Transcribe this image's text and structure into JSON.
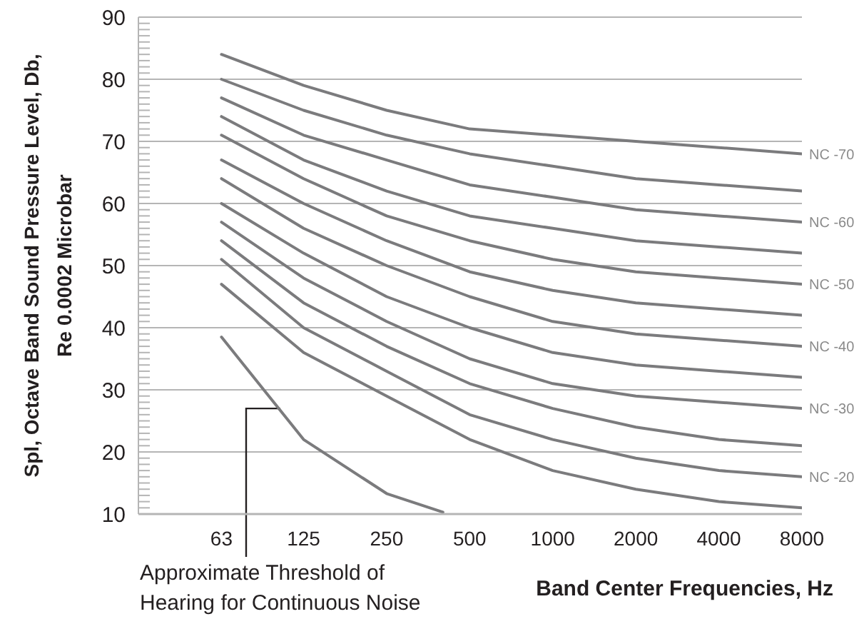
{
  "chart_data": {
    "type": "line",
    "xlabel": "Band Center Frequencies, Hz",
    "ylabel": "Spl, Octave Band Sound Pressure Level, Db, Re 0.0002 Microbar",
    "x": [
      63,
      125,
      250,
      500,
      1000,
      2000,
      4000,
      8000
    ],
    "log": "x",
    "xlim": [
      31.5,
      8000
    ],
    "xticks": [
      63,
      125,
      250,
      500,
      1000,
      2000,
      4000,
      8000
    ],
    "ylim": [
      10,
      90
    ],
    "yticks": [
      10,
      {
        "value": 11,
        "label": null
      },
      {
        "value": 12,
        "label": null
      },
      {
        "value": 13,
        "label": null
      },
      {
        "value": 14,
        "label": null
      },
      {
        "value": 15,
        "label": null
      },
      {
        "value": 16,
        "label": null
      },
      {
        "value": 17,
        "label": null
      },
      {
        "value": 18,
        "label": null
      },
      {
        "value": 19,
        "label": null
      },
      20,
      {
        "value": 21,
        "label": null
      },
      {
        "value": 22,
        "label": null
      },
      {
        "value": 23,
        "label": null
      },
      {
        "value": 24,
        "label": null
      },
      {
        "value": 25,
        "label": null
      },
      {
        "value": 26,
        "label": null
      },
      {
        "value": 27,
        "label": null
      },
      {
        "value": 28,
        "label": null
      },
      {
        "value": 29,
        "label": null
      },
      30,
      {
        "value": 31,
        "label": null
      },
      {
        "value": 32,
        "label": null
      },
      {
        "value": 33,
        "label": null
      },
      {
        "value": 34,
        "label": null
      },
      {
        "value": 35,
        "label": null
      },
      {
        "value": 36,
        "label": null
      },
      {
        "value": 37,
        "label": null
      },
      {
        "value": 38,
        "label": null
      },
      {
        "value": 39,
        "label": null
      },
      40,
      {
        "value": 41,
        "label": null
      },
      {
        "value": 42,
        "label": null
      },
      {
        "value": 43,
        "label": null
      },
      {
        "value": 44,
        "label": null
      },
      {
        "value": 45,
        "label": null
      },
      {
        "value": 46,
        "label": null
      },
      {
        "value": 47,
        "label": null
      },
      {
        "value": 48,
        "label": null
      },
      {
        "value": 49,
        "label": null
      },
      50,
      {
        "value": 51,
        "label": null
      },
      {
        "value": 52,
        "label": null
      },
      {
        "value": 53,
        "label": null
      },
      {
        "value": 54,
        "label": null
      },
      {
        "value": 55,
        "label": null
      },
      {
        "value": 56,
        "label": null
      },
      {
        "value": 57,
        "label": null
      },
      {
        "value": 58,
        "label": null
      },
      {
        "value": 59,
        "label": null
      },
      60,
      {
        "value": 61,
        "label": null
      },
      {
        "value": 62,
        "label": null
      },
      {
        "value": 63,
        "label": null
      },
      {
        "value": 64,
        "label": null
      },
      {
        "value": 65,
        "label": null
      },
      {
        "value": 66,
        "label": null
      },
      {
        "value": 67,
        "label": null
      },
      {
        "value": 68,
        "label": null
      },
      {
        "value": 69,
        "label": null
      },
      70,
      {
        "value": 71,
        "label": null
      },
      {
        "value": 72,
        "label": null
      },
      {
        "value": 73,
        "label": null
      },
      {
        "value": 74,
        "label": null
      },
      {
        "value": 75,
        "label": null
      },
      {
        "value": 76,
        "label": null
      },
      {
        "value": 77,
        "label": null
      },
      {
        "value": 78,
        "label": null
      },
      {
        "value": 79,
        "label": null
      },
      80,
      {
        "value": 81,
        "label": null
      },
      {
        "value": 82,
        "label": null
      },
      {
        "value": 83,
        "label": null
      },
      {
        "value": 84,
        "label": null
      },
      {
        "value": 85,
        "label": null
      },
      {
        "value": 86,
        "label": null
      },
      {
        "value": 87,
        "label": null
      },
      {
        "value": 88,
        "label": null
      },
      {
        "value": 89,
        "label": null
      },
      90
    ],
    "grid": "y",
    "series": [
      {
        "name": "NC -70",
        "color": "#7b7b7d",
        "values": [
          84,
          79,
          75,
          72,
          71,
          70,
          69,
          68
        ]
      },
      {
        "color": "#7b7b7d",
        "values": [
          80,
          75,
          71,
          68,
          66,
          64,
          63,
          62
        ]
      },
      {
        "name": "NC -60",
        "color": "#7b7b7d",
        "values": [
          77,
          71,
          67,
          63,
          61,
          59,
          58,
          57
        ]
      },
      {
        "color": "#7b7b7d",
        "values": [
          74,
          67,
          62,
          58,
          56,
          54,
          53,
          52
        ]
      },
      {
        "name": "NC -50",
        "color": "#7b7b7d",
        "values": [
          71,
          64,
          58,
          54,
          51,
          49,
          48,
          47
        ]
      },
      {
        "color": "#7b7b7d",
        "values": [
          67,
          60,
          54,
          49,
          46,
          44,
          43,
          42
        ]
      },
      {
        "name": "NC -40",
        "color": "#7b7b7d",
        "values": [
          64,
          56,
          50,
          45,
          41,
          39,
          38,
          37
        ]
      },
      {
        "color": "#7b7b7d",
        "values": [
          60,
          52,
          45,
          40,
          36,
          34,
          33,
          32
        ]
      },
      {
        "name": "NC -30",
        "color": "#7b7b7d",
        "values": [
          57,
          48,
          41,
          35,
          31,
          29,
          28,
          27
        ]
      },
      {
        "color": "#7b7b7d",
        "values": [
          54,
          44,
          37,
          31,
          27,
          24,
          22,
          21
        ]
      },
      {
        "name": "NC -20",
        "color": "#7b7b7d",
        "values": [
          51,
          40,
          33,
          26,
          22,
          19,
          17,
          16
        ]
      },
      {
        "color": "#7b7b7d",
        "values": [
          47,
          36,
          29,
          22,
          17,
          14,
          12,
          11
        ]
      },
      {
        "color": "#7b7b7d",
        "x": [
          63,
          125,
          250,
          400
        ],
        "values": [
          38.5,
          22,
          13.3,
          10.3
        ]
      }
    ],
    "annotations": [
      {
        "text": "Approximate Threshold of Hearing for Continuous Noise",
        "x": 103,
        "y": 27
      }
    ]
  }
}
